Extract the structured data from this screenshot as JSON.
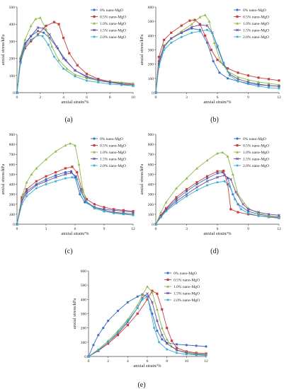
{
  "colors": {
    "0% nano-MgO": "#3a6fc4",
    "0.5% nano-MgO": "#c8403c",
    "1.0% nano-MgO": "#8db84a",
    "1.5% nano-MgO": "#6a4c9c",
    "2.0% nano-MgO": "#35aed0"
  },
  "markers": {
    "0% nano-MgO": "circle",
    "0.5% nano-MgO": "square",
    "1.0% nano-MgO": "triangle",
    "1.5% nano-MgO": "x",
    "2.0% nano-MgO": "star"
  },
  "chart_data": [
    {
      "type": "line",
      "caption": "(a)",
      "xlabel": "anxial strain/%",
      "ylabel": "anxial stress/kPa",
      "xlim": [
        0,
        10
      ],
      "ylim": [
        0,
        500
      ],
      "xticks": [
        0,
        2,
        4,
        6,
        8,
        10
      ],
      "yticks": [
        0,
        100,
        200,
        300,
        400,
        500
      ],
      "legend_position": "top-right",
      "series": [
        {
          "name": "0% nano-MgO",
          "x": [
            0,
            0.3,
            0.7,
            1.2,
            1.8,
            2.3,
            2.8,
            3.5,
            4.2,
            5,
            6,
            7,
            8,
            9,
            10
          ],
          "y": [
            0,
            200,
            290,
            330,
            360,
            350,
            320,
            260,
            190,
            130,
            90,
            70,
            60,
            55,
            50
          ]
        },
        {
          "name": "0.5% nano-MgO",
          "x": [
            0,
            0.3,
            0.7,
            1.2,
            1.8,
            2.5,
            3.2,
            3.6,
            4.0,
            4.5,
            5.2,
            6,
            7,
            8,
            9,
            10
          ],
          "y": [
            0,
            180,
            260,
            300,
            340,
            390,
            412,
            400,
            320,
            230,
            160,
            110,
            80,
            65,
            55,
            45
          ]
        },
        {
          "name": "1.0% nano-MgO",
          "x": [
            0,
            0.3,
            0.7,
            1.2,
            1.6,
            2.0,
            2.5,
            3.0,
            3.6,
            4.3,
            5,
            6,
            7,
            8,
            9,
            10
          ],
          "y": [
            0,
            210,
            310,
            390,
            430,
            438,
            370,
            270,
            190,
            140,
            105,
            85,
            70,
            65,
            60,
            55
          ]
        },
        {
          "name": "1.5% nano-MgO",
          "x": [
            0,
            0.3,
            0.7,
            1.2,
            1.8,
            2.3,
            2.8,
            3.4,
            4.0,
            5,
            6,
            7,
            8,
            9,
            10
          ],
          "y": [
            0,
            190,
            280,
            330,
            380,
            375,
            340,
            270,
            200,
            130,
            95,
            75,
            60,
            50,
            40
          ]
        },
        {
          "name": "2.0% nano-MgO",
          "x": [
            0,
            0.3,
            0.7,
            1.2,
            1.8,
            2.2,
            2.7,
            3.2,
            4.0,
            5,
            6,
            7,
            8,
            9,
            10
          ],
          "y": [
            0,
            170,
            270,
            310,
            335,
            330,
            280,
            210,
            140,
            95,
            70,
            60,
            50,
            45,
            40
          ]
        }
      ]
    },
    {
      "type": "line",
      "caption": "(b)",
      "xlabel": "anxial strain/%",
      "ylabel": "anxial stress/kPa",
      "xlim": [
        0,
        12
      ],
      "ylim": [
        0,
        600
      ],
      "xticks": [
        0,
        3,
        6,
        9,
        12
      ],
      "yticks": [
        0,
        100,
        200,
        300,
        400,
        500,
        600
      ],
      "legend_position": "top-right",
      "series": [
        {
          "name": "0% nano-MgO",
          "x": [
            0,
            0.3,
            0.8,
            1.5,
            2.5,
            3.5,
            4.3,
            5.0,
            5.6,
            6.2,
            7,
            8,
            9,
            10,
            11,
            12
          ],
          "y": [
            0,
            220,
            330,
            380,
            420,
            450,
            440,
            350,
            220,
            140,
            100,
            80,
            65,
            55,
            50,
            45
          ]
        },
        {
          "name": "0.5% nano-MgO",
          "x": [
            0,
            0.3,
            0.8,
            1.5,
            2.5,
            3.3,
            3.8,
            4.3,
            4.8,
            5.4,
            6,
            7,
            8,
            9,
            10,
            11,
            12
          ],
          "y": [
            0,
            250,
            370,
            420,
            470,
            505,
            510,
            480,
            400,
            300,
            230,
            170,
            140,
            120,
            105,
            95,
            85
          ]
        },
        {
          "name": "1.0% nano-MgO",
          "x": [
            0,
            0.3,
            0.8,
            1.5,
            2.5,
            3.5,
            4.3,
            4.8,
            5.2,
            5.7,
            6.3,
            7,
            8,
            9,
            10,
            11,
            12
          ],
          "y": [
            0,
            200,
            330,
            380,
            430,
            480,
            530,
            545,
            500,
            350,
            220,
            150,
            110,
            90,
            75,
            65,
            55
          ]
        },
        {
          "name": "1.5% nano-MgO",
          "x": [
            0,
            0.3,
            0.8,
            1.5,
            2.5,
            3.5,
            4.3,
            5.0,
            5.5,
            6.0,
            6.6,
            7.2,
            8,
            9,
            10,
            11,
            12
          ],
          "y": [
            0,
            200,
            320,
            380,
            420,
            460,
            475,
            470,
            420,
            320,
            200,
            130,
            95,
            75,
            60,
            50,
            45
          ]
        },
        {
          "name": "2.0% nano-MgO",
          "x": [
            0,
            0.3,
            0.8,
            1.5,
            2.5,
            3.5,
            4.3,
            5.0,
            5.5,
            6.0,
            6.6,
            7.2,
            8,
            9,
            10,
            11,
            12
          ],
          "y": [
            0,
            180,
            300,
            350,
            390,
            420,
            430,
            440,
            420,
            330,
            210,
            120,
            80,
            60,
            45,
            35,
            30
          ]
        }
      ]
    },
    {
      "type": "line",
      "caption": "(c)",
      "xlabel": "anxial strain/%",
      "ylabel": "anxial stress/kPa",
      "xlim": [
        0,
        12
      ],
      "ylim": [
        0,
        900
      ],
      "xticks": [
        0,
        3,
        6,
        9,
        12
      ],
      "yticks": [
        0,
        100,
        200,
        300,
        400,
        500,
        600,
        700,
        800,
        900
      ],
      "legend_position": "top-right",
      "series": [
        {
          "name": "0% nano-MgO",
          "x": [
            0,
            0.5,
            1,
            2,
            3,
            4,
            5,
            5.6,
            6.0,
            6.5,
            7,
            8,
            9,
            10,
            11,
            12
          ],
          "y": [
            0,
            250,
            330,
            400,
            450,
            490,
            520,
            530,
            470,
            300,
            220,
            170,
            150,
            140,
            130,
            120
          ]
        },
        {
          "name": "0.5% nano-MgO",
          "x": [
            0,
            0.5,
            1,
            2,
            3,
            4,
            5,
            5.7,
            6.2,
            6.7,
            7.2,
            8,
            9,
            10,
            11,
            12
          ],
          "y": [
            0,
            270,
            350,
            430,
            480,
            520,
            560,
            575,
            520,
            350,
            250,
            200,
            170,
            150,
            140,
            130
          ]
        },
        {
          "name": "1.0% nano-MgO",
          "x": [
            0,
            0.3,
            0.6,
            1,
            1.5,
            2,
            3,
            4,
            5,
            5.5,
            6.0,
            6.4,
            6.8,
            7.2,
            8,
            9,
            10,
            11,
            12
          ],
          "y": [
            0,
            150,
            300,
            420,
            500,
            560,
            650,
            730,
            790,
            810,
            790,
            600,
            350,
            220,
            160,
            130,
            115,
            105,
            100
          ]
        },
        {
          "name": "1.5% nano-MgO",
          "x": [
            0,
            0.5,
            1,
            2,
            3,
            4,
            5,
            5.6,
            6.1,
            6.6,
            7.1,
            8,
            9,
            10,
            11,
            12
          ],
          "y": [
            0,
            230,
            310,
            390,
            430,
            470,
            500,
            515,
            480,
            330,
            230,
            170,
            140,
            120,
            110,
            100
          ]
        },
        {
          "name": "2.0% nano-MgO",
          "x": [
            0,
            0.5,
            1,
            2,
            3,
            4,
            5,
            5.7,
            6.2,
            6.7,
            7.2,
            8,
            9,
            10,
            11,
            12
          ],
          "y": [
            0,
            200,
            280,
            360,
            400,
            430,
            460,
            470,
            450,
            320,
            220,
            160,
            130,
            110,
            100,
            90
          ]
        }
      ]
    },
    {
      "type": "line",
      "caption": "(d)",
      "xlabel": "anxial strain/%",
      "ylabel": "anxial stress/kPa",
      "xlim": [
        0,
        12
      ],
      "ylim": [
        0,
        900
      ],
      "xticks": [
        0,
        3,
        6,
        9,
        12
      ],
      "yticks": [
        0,
        100,
        200,
        300,
        400,
        500,
        600,
        700,
        800,
        900
      ],
      "legend_position": "top-right",
      "series": [
        {
          "name": "0% nano-MgO",
          "x": [
            0,
            0.5,
            1,
            2,
            3,
            4,
            5,
            6,
            6.5,
            7,
            7.5,
            8,
            9,
            10,
            11,
            12
          ],
          "y": [
            0,
            80,
            150,
            250,
            330,
            400,
            460,
            510,
            520,
            460,
            300,
            200,
            130,
            100,
            85,
            75
          ]
        },
        {
          "name": "0.5% nano-MgO",
          "x": [
            0,
            0.5,
            1,
            2,
            3,
            4,
            5,
            6,
            6.6,
            7.0,
            7.3,
            8,
            9,
            10,
            11,
            12
          ],
          "y": [
            0,
            90,
            160,
            270,
            350,
            420,
            480,
            530,
            535,
            400,
            150,
            120,
            100,
            85,
            75,
            65
          ]
        },
        {
          "name": "1.0% nano-MgO",
          "x": [
            0,
            0.5,
            1,
            2,
            3,
            4,
            5,
            6,
            6.5,
            7,
            7.5,
            8,
            9,
            10,
            11,
            12
          ],
          "y": [
            0,
            120,
            220,
            360,
            460,
            560,
            640,
            710,
            720,
            680,
            500,
            300,
            160,
            110,
            85,
            70
          ]
        },
        {
          "name": "1.5% nano-MgO",
          "x": [
            0,
            0.5,
            1,
            2,
            3,
            4,
            5,
            6,
            6.7,
            7.3,
            7.8,
            8.5,
            9,
            10,
            11,
            12
          ],
          "y": [
            0,
            80,
            140,
            230,
            300,
            370,
            430,
            470,
            490,
            450,
            320,
            200,
            150,
            120,
            100,
            90
          ]
        },
        {
          "name": "2.0% nano-MgO",
          "x": [
            0,
            0.5,
            1,
            2,
            3,
            4,
            5,
            6,
            6.7,
            7.2,
            7.7,
            8.3,
            9,
            10,
            11,
            12
          ],
          "y": [
            0,
            70,
            130,
            210,
            280,
            340,
            390,
            420,
            430,
            380,
            250,
            150,
            110,
            85,
            70,
            60
          ]
        }
      ]
    },
    {
      "type": "line",
      "caption": "(e)",
      "xlabel": "anxial strain/%",
      "ylabel": "anxial stress/kPa",
      "xlim": [
        0,
        12
      ],
      "ylim": [
        0,
        600
      ],
      "xticks": [
        0,
        2,
        4,
        6,
        8,
        10,
        12
      ],
      "yticks": [
        0,
        100,
        200,
        300,
        400,
        500,
        600
      ],
      "legend_position": "top-left",
      "series": [
        {
          "name": "0% nano-MgO",
          "x": [
            0,
            0.5,
            1,
            1.5,
            2,
            3,
            4,
            5,
            5.5,
            6,
            6.5,
            7,
            7.5,
            8,
            9,
            10,
            11,
            12
          ],
          "y": [
            0,
            80,
            150,
            200,
            250,
            320,
            380,
            420,
            435,
            420,
            300,
            180,
            120,
            95,
            85,
            80,
            75,
            70
          ]
        },
        {
          "name": "0.5% nano-MgO",
          "x": [
            0,
            1,
            2,
            3,
            4,
            5,
            6,
            6.5,
            7,
            7.5,
            8,
            8.5,
            9,
            10,
            11,
            12
          ],
          "y": [
            0,
            40,
            90,
            150,
            220,
            300,
            400,
            460,
            440,
            330,
            200,
            110,
            60,
            35,
            25,
            20
          ]
        },
        {
          "name": "1.0% nano-MgO",
          "x": [
            0,
            1,
            2,
            3,
            4,
            5,
            5.5,
            6,
            6.5,
            7,
            7.5,
            8,
            8.5,
            9,
            10,
            11,
            12
          ],
          "y": [
            0,
            50,
            110,
            180,
            260,
            360,
            430,
            490,
            450,
            330,
            200,
            120,
            70,
            45,
            30,
            20,
            15
          ]
        },
        {
          "name": "1.5% nano-MgO",
          "x": [
            0,
            1,
            2,
            3,
            4,
            5,
            5.5,
            6,
            6.5,
            7,
            7.5,
            8,
            9,
            10,
            11,
            12
          ],
          "y": [
            0,
            40,
            100,
            160,
            240,
            340,
            410,
            440,
            380,
            250,
            150,
            90,
            45,
            25,
            15,
            10
          ]
        },
        {
          "name": "2.0% nano-MgO",
          "x": [
            0,
            1,
            2,
            3,
            4,
            5,
            5.5,
            6,
            6.3,
            6.7,
            7.2,
            8,
            9,
            10,
            11,
            12
          ],
          "y": [
            0,
            45,
            100,
            170,
            250,
            340,
            400,
            420,
            330,
            200,
            100,
            50,
            25,
            15,
            10,
            8
          ]
        }
      ]
    }
  ]
}
